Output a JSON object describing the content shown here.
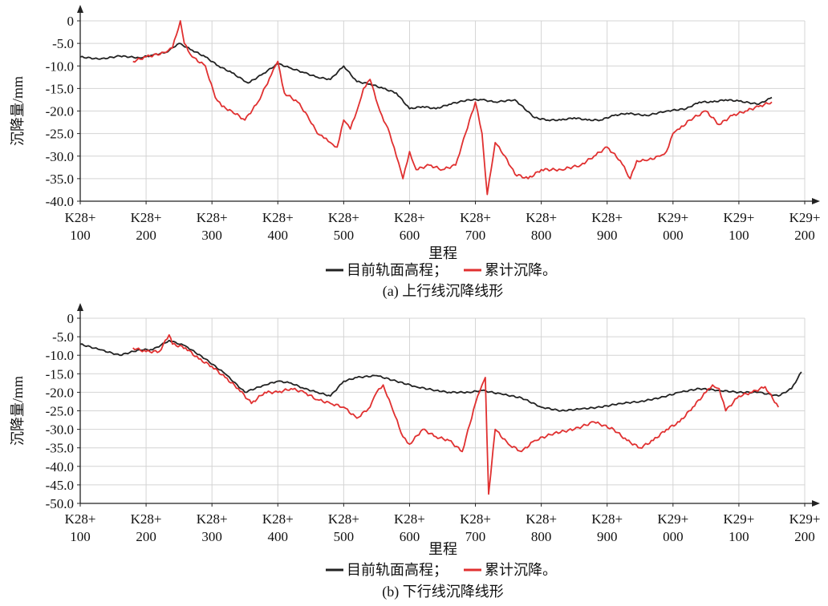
{
  "chart_data": [
    {
      "type": "line",
      "caption": "(a) 上行线沉降线形",
      "ylabel": "沉降量/mm",
      "xlabel": "里程",
      "ylim": [
        -40,
        0
      ],
      "yticks": [
        0,
        -5.0,
        -10.0,
        -15.0,
        -20.0,
        -25.0,
        -30.0,
        -35.0,
        -40.0
      ],
      "ytick_labels": [
        "0",
        "-5.0",
        "-10.0",
        "-15.0",
        "-20.0",
        "-25.0",
        "-30.0",
        "-35.0",
        "-40.0"
      ],
      "xlim": [
        100,
        1200
      ],
      "xticks": [
        100,
        200,
        300,
        400,
        500,
        600,
        700,
        800,
        900,
        1000,
        1100,
        1200
      ],
      "xtick_labels": [
        [
          "K28+",
          "100"
        ],
        [
          "K28+",
          "200"
        ],
        [
          "K28+",
          "300"
        ],
        [
          "K28+",
          "400"
        ],
        [
          "K28+",
          "500"
        ],
        [
          "K28+",
          "600"
        ],
        [
          "K28+",
          "700"
        ],
        [
          "K28+",
          "800"
        ],
        [
          "K28+",
          "900"
        ],
        [
          "K29+",
          "000"
        ],
        [
          "K29+",
          "100"
        ],
        [
          "K29+",
          "200"
        ]
      ],
      "legend": {
        "items": [
          {
            "label": "目前轨面高程；",
            "color": "#222222"
          },
          {
            "label": "累计沉降。",
            "color": "#e03030"
          }
        ]
      },
      "grid": true,
      "series": [
        {
          "name": "目前轨面高程",
          "color": "#222222",
          "x": [
            100,
            130,
            160,
            190,
            210,
            230,
            250,
            270,
            290,
            310,
            330,
            355,
            375,
            400,
            420,
            440,
            460,
            480,
            500,
            520,
            540,
            560,
            580,
            600,
            620,
            640,
            660,
            690,
            710,
            730,
            760,
            790,
            810,
            830,
            850,
            870,
            890,
            910,
            930,
            960,
            990,
            1020,
            1040,
            1060,
            1080,
            1100,
            1130,
            1150
          ],
          "y": [
            -8,
            -8.5,
            -7.8,
            -8.2,
            -7.6,
            -7,
            -5,
            -6.5,
            -8,
            -10,
            -11.5,
            -13.8,
            -12,
            -9.5,
            -10.5,
            -11.5,
            -12.5,
            -13,
            -10,
            -13.5,
            -14,
            -15,
            -16,
            -19.5,
            -19,
            -19.5,
            -18.5,
            -17.5,
            -17.5,
            -18,
            -17.5,
            -21.5,
            -22,
            -22,
            -21.5,
            -22,
            -22,
            -21,
            -20.5,
            -21,
            -20,
            -19.5,
            -18,
            -18,
            -17.5,
            -17.8,
            -18.5,
            -17
          ]
        },
        {
          "name": "累计沉降",
          "color": "#e03030",
          "x": [
            180,
            200,
            230,
            240,
            252,
            258,
            270,
            290,
            305,
            315,
            330,
            350,
            370,
            390,
            400,
            410,
            430,
            445,
            460,
            470,
            480,
            490,
            500,
            510,
            520,
            530,
            540,
            555,
            570,
            580,
            590,
            600,
            610,
            630,
            650,
            670,
            685,
            700,
            710,
            718,
            730,
            745,
            760,
            780,
            800,
            830,
            860,
            880,
            900,
            920,
            935,
            945,
            960,
            980,
            990,
            1000,
            1010,
            1025,
            1050,
            1070,
            1090,
            1110,
            1130,
            1150
          ],
          "y": [
            -9,
            -8,
            -7,
            -6,
            0,
            -5,
            -8,
            -10,
            -17,
            -19,
            -20,
            -22,
            -18,
            -12,
            -9,
            -16,
            -18,
            -21,
            -25,
            -26,
            -27,
            -28,
            -22,
            -24,
            -20,
            -15,
            -13,
            -20,
            -25,
            -30,
            -35,
            -29,
            -33,
            -32,
            -33,
            -32,
            -25,
            -18,
            -25,
            -38.5,
            -27,
            -30,
            -34,
            -35,
            -33,
            -33,
            -32,
            -30,
            -28,
            -31,
            -35,
            -31,
            -31,
            -30,
            -29,
            -25,
            -24,
            -22,
            -20,
            -23,
            -21,
            -20,
            -19,
            -18
          ]
        }
      ]
    },
    {
      "type": "line",
      "caption": "(b) 下行线沉降线形",
      "ylabel": "沉降量/mm",
      "xlabel": "里程",
      "ylim": [
        -50,
        0
      ],
      "yticks": [
        0,
        -5.0,
        -10.0,
        -15.0,
        -20.0,
        -25.0,
        -30.0,
        -35.0,
        -40.0,
        -45.0,
        -50.0
      ],
      "ytick_labels": [
        "0",
        "-5.0",
        "-10.0",
        "-15.0",
        "-20.0",
        "-25.0",
        "-30.0",
        "-35.0",
        "-40.0",
        "-45.0",
        "-50.0"
      ],
      "xlim": [
        100,
        1200
      ],
      "xticks": [
        100,
        200,
        300,
        400,
        500,
        600,
        700,
        800,
        900,
        1000,
        1100,
        1200
      ],
      "xtick_labels": [
        [
          "K28+",
          "100"
        ],
        [
          "K28+",
          "200"
        ],
        [
          "K28+",
          "300"
        ],
        [
          "K28+",
          "400"
        ],
        [
          "K28+",
          "500"
        ],
        [
          "K28+",
          "600"
        ],
        [
          "K28+",
          "700"
        ],
        [
          "K28+",
          "800"
        ],
        [
          "K28+",
          "900"
        ],
        [
          "K29+",
          "000"
        ],
        [
          "K29+",
          "100"
        ],
        [
          "K29+",
          "200"
        ]
      ],
      "legend": {
        "items": [
          {
            "label": "目前轨面高程；",
            "color": "#222222"
          },
          {
            "label": "累计沉降。",
            "color": "#e03030"
          }
        ]
      },
      "grid": true,
      "series": [
        {
          "name": "目前轨面高程",
          "color": "#222222",
          "x": [
            100,
            130,
            160,
            190,
            210,
            235,
            260,
            290,
            320,
            350,
            380,
            400,
            420,
            440,
            460,
            480,
            500,
            520,
            550,
            580,
            610,
            640,
            660,
            690,
            710,
            740,
            770,
            800,
            830,
            860,
            890,
            920,
            950,
            980,
            1010,
            1040,
            1070,
            1100,
            1130,
            1160,
            1180,
            1195
          ],
          "y": [
            -7,
            -8.5,
            -10,
            -8.5,
            -8.5,
            -6,
            -7.5,
            -11,
            -15,
            -20,
            -18,
            -17,
            -17.5,
            -19,
            -20,
            -21,
            -17,
            -16,
            -15.5,
            -17,
            -18.5,
            -19.5,
            -20,
            -20,
            -19.5,
            -20.5,
            -21.5,
            -24,
            -25,
            -24.5,
            -24,
            -23,
            -22.5,
            -21.5,
            -20,
            -19,
            -19.5,
            -20,
            -20,
            -21,
            -19,
            -14.5
          ]
        },
        {
          "name": "累计沉降",
          "color": "#e03030",
          "x": [
            180,
            200,
            220,
            235,
            240,
            260,
            280,
            300,
            320,
            340,
            360,
            380,
            400,
            420,
            440,
            460,
            480,
            500,
            520,
            540,
            550,
            560,
            575,
            590,
            600,
            620,
            640,
            660,
            680,
            700,
            710,
            715,
            720,
            730,
            750,
            770,
            790,
            820,
            850,
            880,
            910,
            930,
            950,
            970,
            990,
            1010,
            1030,
            1050,
            1060,
            1070,
            1080,
            1100,
            1120,
            1140,
            1160
          ],
          "y": [
            -8,
            -9,
            -9,
            -4.5,
            -7,
            -8,
            -11,
            -13,
            -16,
            -19,
            -23,
            -20,
            -20,
            -19,
            -20,
            -22,
            -23,
            -24,
            -27,
            -24,
            -20,
            -18,
            -25,
            -32,
            -34,
            -30,
            -32,
            -33,
            -36,
            -23,
            -18,
            -16,
            -47.5,
            -30,
            -34,
            -36,
            -33,
            -31,
            -30,
            -28,
            -30,
            -33,
            -35,
            -33,
            -30,
            -28,
            -24,
            -20,
            -18,
            -19,
            -25,
            -21,
            -20,
            -18.5,
            -24
          ]
        }
      ]
    }
  ]
}
